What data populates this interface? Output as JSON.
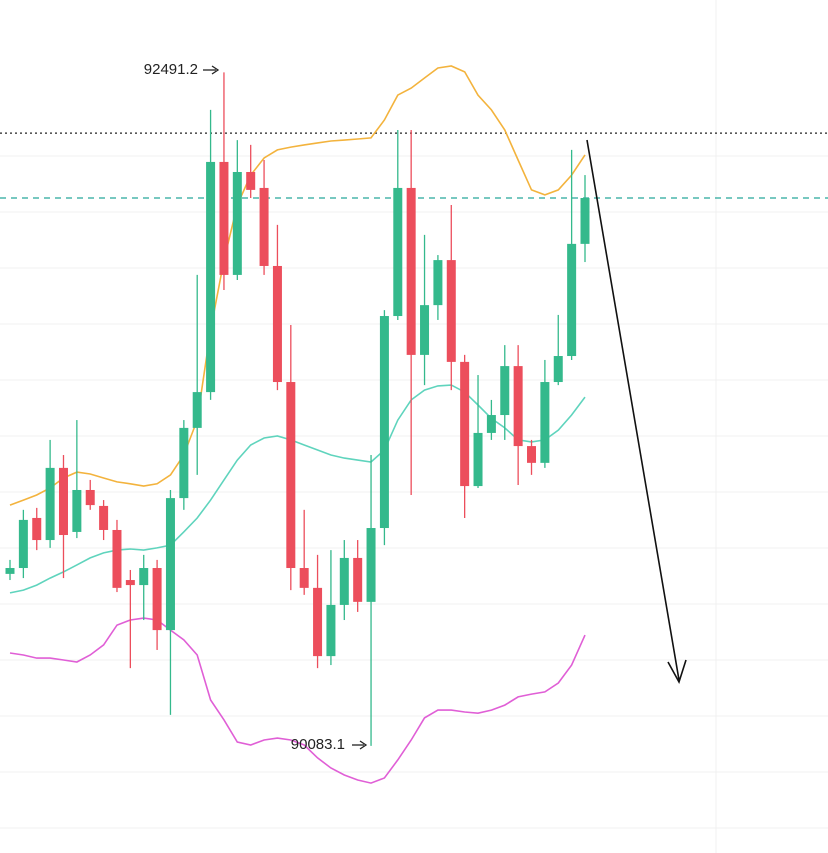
{
  "chart_data": {
    "type": "candlestick",
    "ylim": [
      89700,
      92750
    ],
    "up_color": "#34b98c",
    "down_color": "#ec4e5c",
    "open": [
      90698,
      90719,
      90898,
      90819,
      91077,
      90848,
      90998,
      90941,
      90855,
      90676,
      90658,
      90719,
      90497,
      90969,
      91220,
      91348,
      92171,
      91767,
      92135,
      92078,
      91799,
      91384,
      90719,
      90648,
      90404,
      90587,
      90755,
      90598,
      90862,
      91620,
      92078,
      91481,
      91659,
      91820,
      91456,
      91012,
      91202,
      91266,
      91441,
      91155,
      91095,
      91384,
      91477,
      91878
    ],
    "high": [
      90748,
      90927,
      90934,
      91177,
      91123,
      91248,
      91034,
      90962,
      90891,
      90712,
      90766,
      90748,
      90998,
      91248,
      91767,
      92357,
      92491.2,
      92249,
      92232,
      92178,
      91946,
      91588,
      90927,
      90766,
      90783,
      90819,
      90819,
      91123,
      91641,
      92285,
      92285,
      91910,
      91838,
      92017,
      91481,
      91409,
      91320,
      91516,
      91516,
      91177,
      91463,
      91624,
      92214,
      92124
    ],
    "low": [
      90676,
      90683,
      90783,
      90791,
      90683,
      90826,
      90927,
      90819,
      90633,
      90361,
      90533,
      90426,
      90194,
      90927,
      91052,
      91320,
      91713,
      91749,
      92042,
      91767,
      91355,
      90640,
      90623,
      90361,
      90372,
      90533,
      90562,
      90083.1,
      90801,
      91606,
      90980,
      91373,
      91606,
      91355,
      90898,
      91005,
      91177,
      91177,
      91016,
      91052,
      91077,
      91373,
      91463,
      91813
    ],
    "close": [
      90719,
      90891,
      90819,
      91077,
      90837,
      90998,
      90944,
      90855,
      90648,
      90658,
      90719,
      90497,
      90969,
      91220,
      91348,
      92171,
      91767,
      92135,
      92071,
      91799,
      91384,
      90719,
      90648,
      90404,
      90587,
      90755,
      90598,
      90862,
      91620,
      92078,
      91481,
      91659,
      91820,
      91456,
      91012,
      91202,
      91266,
      91441,
      91155,
      91095,
      91384,
      91477,
      91878,
      92042
    ],
    "bands": [
      {
        "color": "#f3b33d",
        "values": [
          90944,
          90962,
          90980,
          91005,
          91041,
          91062,
          91055,
          91041,
          91027,
          91020,
          91012,
          91020,
          91052,
          91123,
          91248,
          91570,
          91820,
          92017,
          92124,
          92185,
          92214,
          92224,
          92232,
          92239,
          92246,
          92249,
          92253,
          92257,
          92321,
          92410,
          92435,
          92471,
          92507,
          92514,
          92493,
          92410,
          92357,
          92285,
          92178,
          92071,
          92053,
          92071,
          92124,
          92196
        ]
      },
      {
        "color": "#5fd4bd",
        "values": [
          90630,
          90640,
          90658,
          90683,
          90705,
          90730,
          90755,
          90773,
          90783,
          90787,
          90783,
          90791,
          90801,
          90848,
          90898,
          90962,
          91034,
          91105,
          91159,
          91184,
          91191,
          91177,
          91159,
          91141,
          91123,
          91112,
          91105,
          91098,
          91141,
          91248,
          91320,
          91355,
          91370,
          91373,
          91348,
          91302,
          91254,
          91220,
          91177,
          91170,
          91177,
          91212,
          91266,
          91330
        ]
      },
      {
        "color": "#e05fd6",
        "values": [
          90415,
          90408,
          90397,
          90397,
          90390,
          90383,
          90408,
          90444,
          90515,
          90533,
          90540,
          90533,
          90497,
          90462,
          90408,
          90247,
          90176,
          90097,
          90086,
          90104,
          90111,
          90104,
          90086,
          90040,
          90004,
          89979,
          89961,
          89950,
          89968,
          90033,
          90104,
          90183,
          90211,
          90211,
          90204,
          90200,
          90211,
          90229,
          90258,
          90268,
          90276,
          90308,
          90372,
          90479
        ]
      }
    ],
    "reference_lines": [
      {
        "value": 92274,
        "color": "#222222",
        "style": "dotted"
      },
      {
        "value": 92042,
        "color": "#26a69a",
        "style": "dashed"
      }
    ]
  }
}
